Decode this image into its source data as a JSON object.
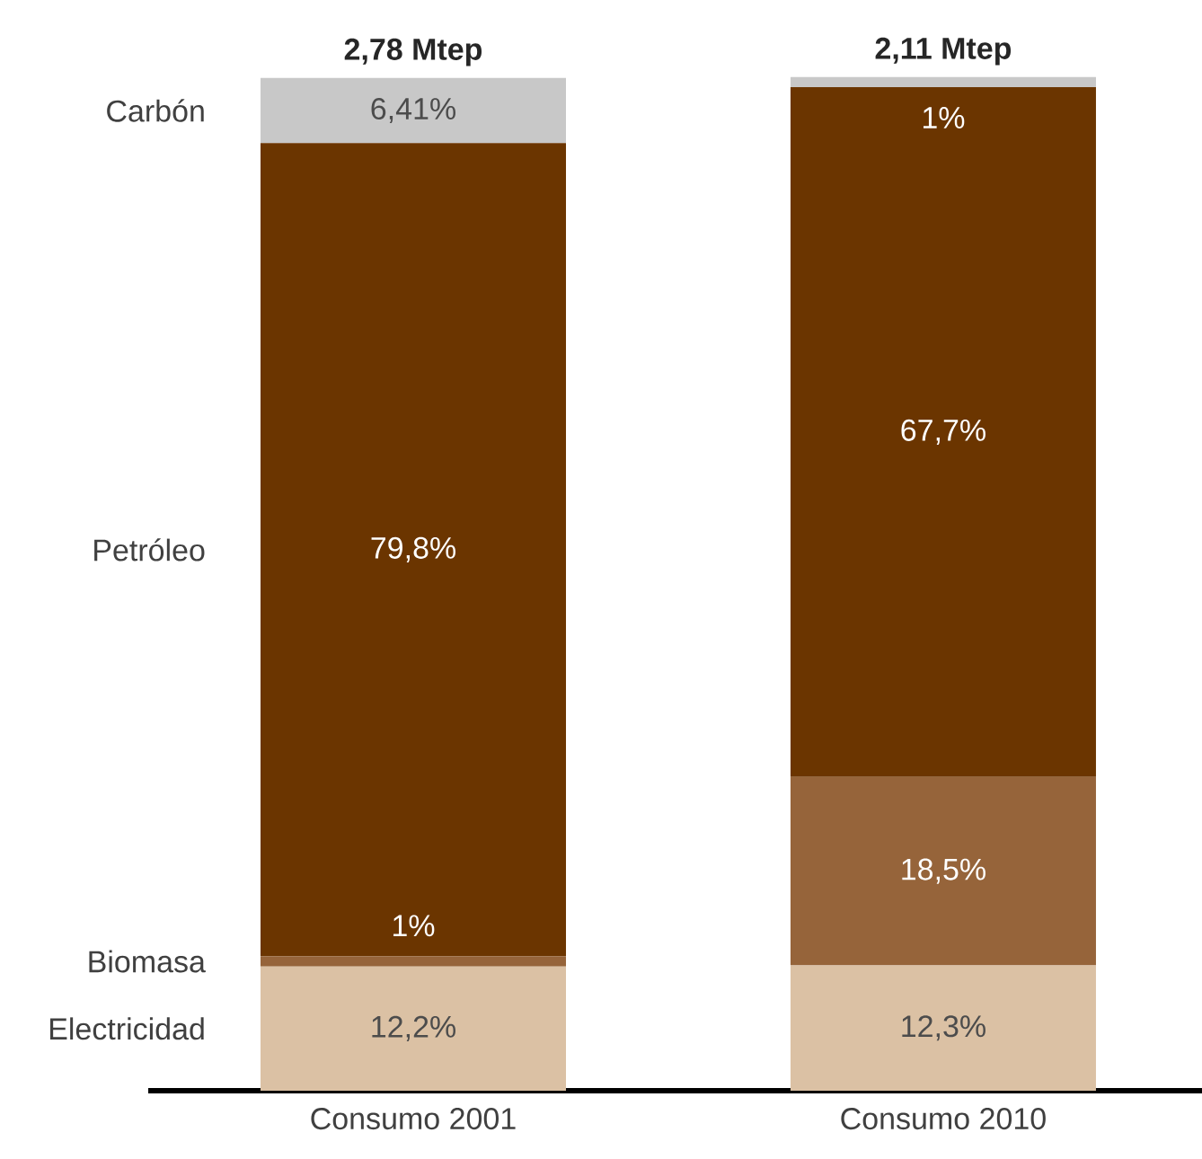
{
  "chart_data": {
    "type": "bar",
    "stacked": true,
    "data_labels": true,
    "categories": [
      "Consumo 2001",
      "Consumo 2010"
    ],
    "series": [
      {
        "name": "Electricidad",
        "color": "#dbc1a4",
        "values": [
          12.2,
          12.3
        ],
        "value_labels": [
          "12,2%",
          "12,3%"
        ]
      },
      {
        "name": "Biomasa",
        "color": "#96643a",
        "values": [
          1,
          18.5
        ],
        "value_labels": [
          "1%",
          "18,5%"
        ]
      },
      {
        "name": "Petróleo",
        "color": "#6b3500",
        "values": [
          79.8,
          67.7
        ],
        "value_labels": [
          "79,8%",
          "67,7%"
        ]
      },
      {
        "name": "Carbón",
        "color": "#c8c8c8",
        "values": [
          6.41,
          1
        ],
        "value_labels": [
          "6,41%",
          "1%"
        ]
      }
    ],
    "ylim": [
      0,
      100
    ],
    "annotations": [
      {
        "text": "2,78 Mtep",
        "x": "Consumo 2001",
        "y": 99.41
      },
      {
        "text": "2,11 Mtep",
        "x": "Consumo 2010",
        "y": 99.5
      }
    ]
  }
}
